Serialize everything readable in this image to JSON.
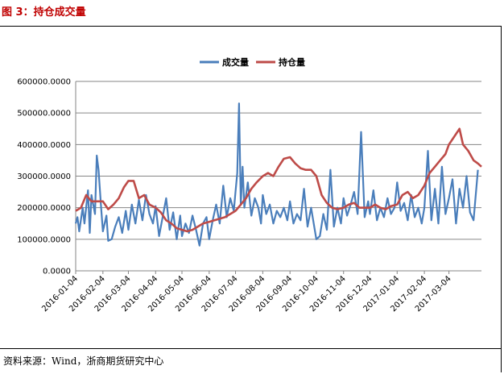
{
  "caption": "图 3：持仓成交量",
  "source": "资料来源：Wind，浙商期货研究中心",
  "colors": {
    "volume": "#4a7ebb",
    "open_interest": "#be4b48",
    "grid": "#868686",
    "caption": "#c00000"
  },
  "chart_data": {
    "type": "line",
    "title": "",
    "xlabel": "",
    "ylabel": "",
    "ylim": [
      0,
      600000
    ],
    "yticks": [
      "0.0000",
      "100000.0000",
      "200000.0000",
      "300000.0000",
      "400000.0000",
      "500000.0000",
      "600000.0000"
    ],
    "grid": true,
    "legend_position": "top",
    "x_tick_labels": [
      "2016-01-04",
      "2016-02-04",
      "2016-03-04",
      "2016-04-04",
      "2016-05-04",
      "2016-06-04",
      "2016-07-04",
      "2016-08-04",
      "2016-09-04",
      "2016-10-04",
      "2016-11-04",
      "2016-12-04",
      "2017-01-04",
      "2017-02-04",
      "2017-03-04"
    ],
    "x_range": [
      "2016-01-04",
      "2017-04-10"
    ],
    "series": [
      {
        "name": "成交量",
        "color": "#4a7ebb",
        "points": [
          [
            "2016-01-04",
            150000
          ],
          [
            "2016-01-06",
            170000
          ],
          [
            "2016-01-08",
            125000
          ],
          [
            "2016-01-12",
            200000
          ],
          [
            "2016-01-14",
            150000
          ],
          [
            "2016-01-18",
            255000
          ],
          [
            "2016-01-20",
            120000
          ],
          [
            "2016-01-22",
            240000
          ],
          [
            "2016-01-26",
            180000
          ],
          [
            "2016-01-28",
            365000
          ],
          [
            "2016-01-30",
            320000
          ],
          [
            "2016-02-02",
            200000
          ],
          [
            "2016-02-04",
            125000
          ],
          [
            "2016-02-08",
            175000
          ],
          [
            "2016-02-10",
            95000
          ],
          [
            "2016-02-14",
            100000
          ],
          [
            "2016-02-18",
            140000
          ],
          [
            "2016-02-22",
            170000
          ],
          [
            "2016-02-26",
            120000
          ],
          [
            "2016-03-01",
            190000
          ],
          [
            "2016-03-04",
            130000
          ],
          [
            "2016-03-08",
            210000
          ],
          [
            "2016-03-12",
            150000
          ],
          [
            "2016-03-16",
            225000
          ],
          [
            "2016-03-20",
            160000
          ],
          [
            "2016-03-24",
            240000
          ],
          [
            "2016-03-28",
            180000
          ],
          [
            "2016-04-01",
            150000
          ],
          [
            "2016-04-04",
            205000
          ],
          [
            "2016-04-08",
            110000
          ],
          [
            "2016-04-12",
            170000
          ],
          [
            "2016-04-16",
            230000
          ],
          [
            "2016-04-20",
            130000
          ],
          [
            "2016-04-24",
            185000
          ],
          [
            "2016-04-28",
            100000
          ],
          [
            "2016-05-02",
            175000
          ],
          [
            "2016-05-04",
            110000
          ],
          [
            "2016-05-08",
            150000
          ],
          [
            "2016-05-12",
            120000
          ],
          [
            "2016-05-16",
            175000
          ],
          [
            "2016-05-20",
            130000
          ],
          [
            "2016-05-24",
            80000
          ],
          [
            "2016-05-28",
            150000
          ],
          [
            "2016-06-01",
            170000
          ],
          [
            "2016-06-04",
            100000
          ],
          [
            "2016-06-08",
            160000
          ],
          [
            "2016-06-12",
            210000
          ],
          [
            "2016-06-16",
            150000
          ],
          [
            "2016-06-20",
            270000
          ],
          [
            "2016-06-24",
            170000
          ],
          [
            "2016-06-28",
            230000
          ],
          [
            "2016-07-02",
            190000
          ],
          [
            "2016-07-04",
            250000
          ],
          [
            "2016-07-06",
            310000
          ],
          [
            "2016-07-08",
            530000
          ],
          [
            "2016-07-10",
            210000
          ],
          [
            "2016-07-12",
            330000
          ],
          [
            "2016-07-14",
            200000
          ],
          [
            "2016-07-18",
            280000
          ],
          [
            "2016-07-22",
            175000
          ],
          [
            "2016-07-26",
            230000
          ],
          [
            "2016-07-30",
            200000
          ],
          [
            "2016-08-02",
            150000
          ],
          [
            "2016-08-04",
            240000
          ],
          [
            "2016-08-08",
            180000
          ],
          [
            "2016-08-12",
            210000
          ],
          [
            "2016-08-16",
            150000
          ],
          [
            "2016-08-20",
            190000
          ],
          [
            "2016-08-24",
            170000
          ],
          [
            "2016-08-28",
            200000
          ],
          [
            "2016-09-01",
            160000
          ],
          [
            "2016-09-04",
            220000
          ],
          [
            "2016-09-08",
            150000
          ],
          [
            "2016-09-12",
            180000
          ],
          [
            "2016-09-16",
            160000
          ],
          [
            "2016-09-20",
            260000
          ],
          [
            "2016-09-24",
            140000
          ],
          [
            "2016-09-28",
            200000
          ],
          [
            "2016-10-04",
            100000
          ],
          [
            "2016-10-08",
            110000
          ],
          [
            "2016-10-12",
            180000
          ],
          [
            "2016-10-16",
            130000
          ],
          [
            "2016-10-20",
            320000
          ],
          [
            "2016-10-24",
            140000
          ],
          [
            "2016-10-28",
            200000
          ],
          [
            "2016-11-01",
            150000
          ],
          [
            "2016-11-04",
            230000
          ],
          [
            "2016-11-08",
            175000
          ],
          [
            "2016-11-12",
            210000
          ],
          [
            "2016-11-16",
            250000
          ],
          [
            "2016-11-20",
            180000
          ],
          [
            "2016-11-24",
            440000
          ],
          [
            "2016-11-28",
            170000
          ],
          [
            "2016-12-02",
            220000
          ],
          [
            "2016-12-04",
            180000
          ],
          [
            "2016-12-08",
            255000
          ],
          [
            "2016-12-12",
            160000
          ],
          [
            "2016-12-16",
            200000
          ],
          [
            "2016-12-20",
            170000
          ],
          [
            "2016-12-24",
            230000
          ],
          [
            "2016-12-28",
            180000
          ],
          [
            "2017-01-01",
            200000
          ],
          [
            "2017-01-04",
            280000
          ],
          [
            "2017-01-08",
            190000
          ],
          [
            "2017-01-12",
            215000
          ],
          [
            "2017-01-16",
            160000
          ],
          [
            "2017-01-20",
            240000
          ],
          [
            "2017-01-24",
            170000
          ],
          [
            "2017-01-28",
            200000
          ],
          [
            "2017-02-01",
            150000
          ],
          [
            "2017-02-04",
            200000
          ],
          [
            "2017-02-08",
            380000
          ],
          [
            "2017-02-12",
            160000
          ],
          [
            "2017-02-16",
            260000
          ],
          [
            "2017-02-20",
            150000
          ],
          [
            "2017-02-24",
            330000
          ],
          [
            "2017-02-28",
            180000
          ],
          [
            "2017-03-04",
            230000
          ],
          [
            "2017-03-08",
            290000
          ],
          [
            "2017-03-12",
            150000
          ],
          [
            "2017-03-16",
            260000
          ],
          [
            "2017-03-20",
            200000
          ],
          [
            "2017-03-24",
            300000
          ],
          [
            "2017-03-28",
            185000
          ],
          [
            "2017-04-01",
            160000
          ],
          [
            "2017-04-06",
            320000
          ]
        ]
      },
      {
        "name": "持仓量",
        "color": "#be4b48",
        "points": [
          [
            "2016-01-04",
            190000
          ],
          [
            "2016-01-10",
            200000
          ],
          [
            "2016-01-16",
            240000
          ],
          [
            "2016-01-22",
            220000
          ],
          [
            "2016-01-28",
            220000
          ],
          [
            "2016-02-04",
            220000
          ],
          [
            "2016-02-10",
            195000
          ],
          [
            "2016-02-16",
            210000
          ],
          [
            "2016-02-22",
            230000
          ],
          [
            "2016-02-28",
            265000
          ],
          [
            "2016-03-04",
            285000
          ],
          [
            "2016-03-10",
            285000
          ],
          [
            "2016-03-16",
            230000
          ],
          [
            "2016-03-22",
            240000
          ],
          [
            "2016-03-28",
            210000
          ],
          [
            "2016-04-04",
            200000
          ],
          [
            "2016-04-10",
            185000
          ],
          [
            "2016-04-16",
            160000
          ],
          [
            "2016-04-22",
            150000
          ],
          [
            "2016-04-28",
            135000
          ],
          [
            "2016-05-04",
            130000
          ],
          [
            "2016-05-10",
            125000
          ],
          [
            "2016-05-16",
            130000
          ],
          [
            "2016-05-22",
            140000
          ],
          [
            "2016-05-28",
            150000
          ],
          [
            "2016-06-04",
            155000
          ],
          [
            "2016-06-10",
            160000
          ],
          [
            "2016-06-16",
            165000
          ],
          [
            "2016-06-22",
            170000
          ],
          [
            "2016-06-28",
            180000
          ],
          [
            "2016-07-04",
            190000
          ],
          [
            "2016-07-10",
            210000
          ],
          [
            "2016-07-16",
            230000
          ],
          [
            "2016-07-22",
            260000
          ],
          [
            "2016-07-28",
            280000
          ],
          [
            "2016-08-04",
            300000
          ],
          [
            "2016-08-10",
            310000
          ],
          [
            "2016-08-16",
            300000
          ],
          [
            "2016-08-22",
            330000
          ],
          [
            "2016-08-28",
            355000
          ],
          [
            "2016-09-04",
            360000
          ],
          [
            "2016-09-10",
            340000
          ],
          [
            "2016-09-16",
            325000
          ],
          [
            "2016-09-22",
            320000
          ],
          [
            "2016-09-28",
            320000
          ],
          [
            "2016-10-04",
            300000
          ],
          [
            "2016-10-10",
            240000
          ],
          [
            "2016-10-16",
            215000
          ],
          [
            "2016-10-22",
            200000
          ],
          [
            "2016-10-28",
            195000
          ],
          [
            "2016-11-04",
            200000
          ],
          [
            "2016-11-10",
            210000
          ],
          [
            "2016-11-16",
            215000
          ],
          [
            "2016-11-22",
            200000
          ],
          [
            "2016-11-28",
            200000
          ],
          [
            "2016-12-04",
            200000
          ],
          [
            "2016-12-10",
            210000
          ],
          [
            "2016-12-16",
            200000
          ],
          [
            "2016-12-22",
            195000
          ],
          [
            "2016-12-28",
            205000
          ],
          [
            "2017-01-04",
            210000
          ],
          [
            "2017-01-10",
            240000
          ],
          [
            "2017-01-16",
            250000
          ],
          [
            "2017-01-22",
            230000
          ],
          [
            "2017-01-28",
            240000
          ],
          [
            "2017-02-04",
            270000
          ],
          [
            "2017-02-10",
            310000
          ],
          [
            "2017-02-16",
            330000
          ],
          [
            "2017-02-22",
            350000
          ],
          [
            "2017-02-28",
            370000
          ],
          [
            "2017-03-04",
            400000
          ],
          [
            "2017-03-10",
            425000
          ],
          [
            "2017-03-16",
            450000
          ],
          [
            "2017-03-20",
            400000
          ],
          [
            "2017-03-26",
            380000
          ],
          [
            "2017-04-01",
            350000
          ],
          [
            "2017-04-06",
            340000
          ],
          [
            "2017-04-10",
            330000
          ]
        ]
      }
    ]
  }
}
